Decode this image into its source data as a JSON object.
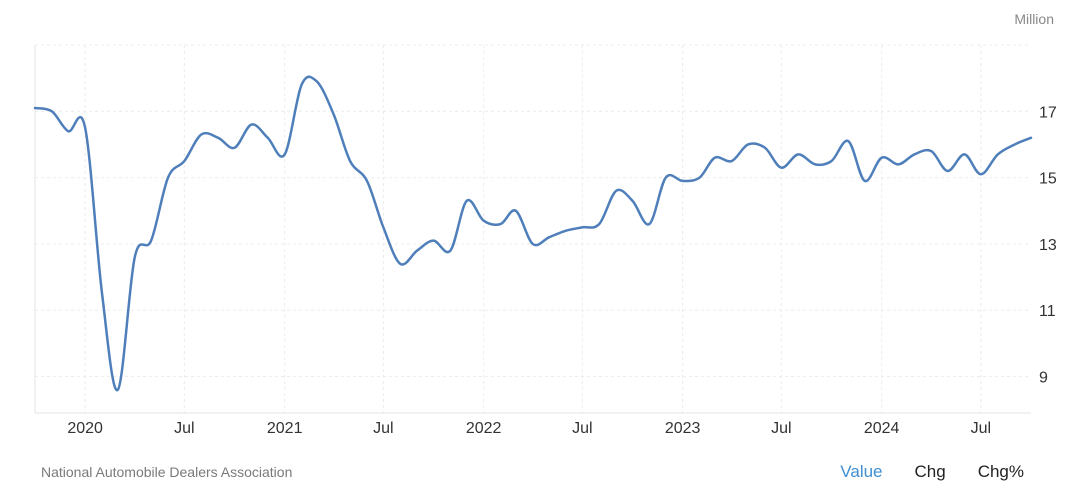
{
  "unit_label": "Million",
  "source": "National Automobile Dealers Association",
  "tabs": [
    {
      "label": "Value",
      "active": true
    },
    {
      "label": "Chg",
      "active": false
    },
    {
      "label": "Chg%",
      "active": false
    }
  ],
  "colors": {
    "line": "#4f7fba",
    "active_tab": "#3f8fd2"
  },
  "chart_data": {
    "type": "line",
    "title": "",
    "xlabel": "",
    "ylabel": "",
    "ylim": [
      7.9,
      19.0
    ],
    "xlim": [
      "2019-10-01",
      "2024-10-01"
    ],
    "grid": true,
    "yticks": [
      9,
      11,
      13,
      15,
      17
    ],
    "xticks": [
      {
        "label": "2020",
        "date": "2020-01-01"
      },
      {
        "label": "Jul",
        "date": "2020-07-01"
      },
      {
        "label": "2021",
        "date": "2021-01-01"
      },
      {
        "label": "Jul",
        "date": "2021-07-01"
      },
      {
        "label": "2022",
        "date": "2022-01-01"
      },
      {
        "label": "Jul",
        "date": "2022-07-01"
      },
      {
        "label": "2023",
        "date": "2023-01-01"
      },
      {
        "label": "Jul",
        "date": "2023-07-01"
      },
      {
        "label": "2024",
        "date": "2024-01-01"
      },
      {
        "label": "Jul",
        "date": "2024-07-01"
      }
    ],
    "series": [
      {
        "x": [
          "2019-10",
          "2019-11",
          "2019-12",
          "2020-01",
          "2020-02",
          "2020-03",
          "2020-04",
          "2020-05",
          "2020-06",
          "2020-07",
          "2020-08",
          "2020-09",
          "2020-10",
          "2020-11",
          "2020-12",
          "2021-01",
          "2021-02",
          "2021-03",
          "2021-04",
          "2021-05",
          "2021-06",
          "2021-07",
          "2021-08",
          "2021-09",
          "2021-10",
          "2021-11",
          "2021-12",
          "2022-01",
          "2022-02",
          "2022-03",
          "2022-04",
          "2022-05",
          "2022-06",
          "2022-07",
          "2022-08",
          "2022-09",
          "2022-10",
          "2022-11",
          "2022-12",
          "2023-01",
          "2023-02",
          "2023-03",
          "2023-04",
          "2023-05",
          "2023-06",
          "2023-07",
          "2023-08",
          "2023-09",
          "2023-10",
          "2023-11",
          "2023-12",
          "2024-01",
          "2024-02",
          "2024-03",
          "2024-04",
          "2024-05",
          "2024-06",
          "2024-07",
          "2024-08",
          "2024-09",
          "2024-10"
        ],
        "values": [
          17.1,
          17.0,
          16.4,
          16.5,
          11.5,
          8.6,
          12.6,
          13.1,
          15.0,
          15.5,
          16.3,
          16.2,
          15.9,
          16.6,
          16.2,
          15.7,
          17.8,
          17.9,
          16.9,
          15.5,
          14.9,
          13.5,
          12.4,
          12.8,
          13.1,
          12.8,
          14.3,
          13.7,
          13.6,
          14.0,
          13.0,
          13.2,
          13.4,
          13.5,
          13.6,
          14.6,
          14.3,
          13.6,
          15.0,
          14.9,
          15.0,
          15.6,
          15.5,
          16.0,
          15.9,
          15.3,
          15.7,
          15.4,
          15.5,
          16.1,
          14.9,
          15.6,
          15.4,
          15.7,
          15.8,
          15.2,
          15.7,
          15.1,
          15.7,
          16.0,
          16.2
        ]
      }
    ]
  }
}
